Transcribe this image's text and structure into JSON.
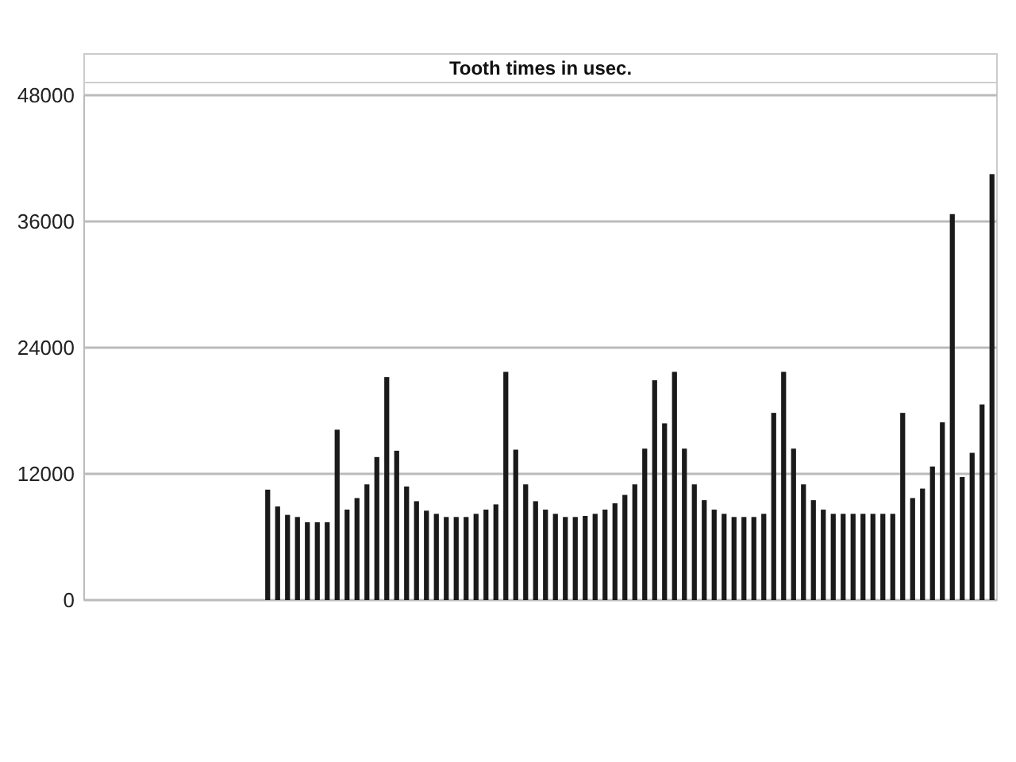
{
  "chart_data": {
    "type": "bar",
    "title": "Tooth times in usec.",
    "categories": [
      null,
      null,
      null,
      null,
      null,
      null,
      null,
      null,
      null,
      null,
      null,
      null,
      null,
      null,
      null,
      null,
      null,
      null,
      null,
      null,
      null,
      null,
      null,
      null,
      null,
      null,
      null,
      null,
      null,
      null,
      null,
      null,
      null,
      null,
      null,
      null,
      null,
      null,
      null,
      null,
      null,
      null,
      null,
      null,
      null,
      null,
      null,
      null,
      null,
      null,
      null,
      null,
      null,
      null,
      null,
      null,
      null,
      null,
      null,
      null,
      null,
      null,
      null,
      null,
      null,
      null,
      null,
      null,
      null,
      null,
      null,
      null,
      null,
      null,
      null,
      null,
      null,
      null,
      null,
      null,
      null,
      null,
      null,
      null,
      null,
      null,
      null,
      null,
      null,
      null,
      null,
      null
    ],
    "values": [
      null,
      null,
      null,
      null,
      null,
      null,
      null,
      null,
      null,
      null,
      null,
      null,
      null,
      null,
      null,
      null,
      null,
      null,
      10500,
      8900,
      8100,
      7900,
      7400,
      7400,
      7400,
      16200,
      8600,
      9700,
      11000,
      13600,
      21200,
      14200,
      10800,
      9400,
      8500,
      8200,
      7900,
      7900,
      7900,
      8200,
      8600,
      9100,
      21700,
      14300,
      11000,
      9400,
      8600,
      8200,
      7900,
      7900,
      8000,
      8200,
      8600,
      9200,
      10000,
      11000,
      14400,
      20900,
      16800,
      21700,
      14400,
      11000,
      9500,
      8600,
      8200,
      7900,
      7900,
      7900,
      8200,
      17800,
      21700,
      14400,
      11000,
      9500,
      8600,
      8200,
      8200,
      8200,
      8200,
      8200,
      8200,
      8200,
      17800,
      9700,
      10600,
      12700,
      16900,
      36700,
      11700,
      14000,
      18600,
      40500
    ],
    "color": "#1a1a1a",
    "ylim": [
      0,
      48000
    ],
    "yticks": [
      0,
      12000,
      24000,
      36000,
      48000
    ],
    "grid": "y",
    "tick_labels": "y"
  }
}
